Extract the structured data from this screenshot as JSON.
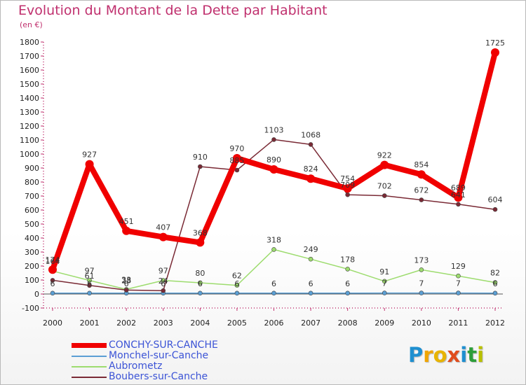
{
  "header": {
    "title": "Evolution du Montant de la Dette par Habitant",
    "subtitle": "(en €)"
  },
  "logo": {
    "text": "Proxiti",
    "colors": [
      "#1e8fd0",
      "#f0a500",
      "#e8b400",
      "#e04c1c",
      "#1e8fd0",
      "#2d9e3a",
      "#b8c000"
    ]
  },
  "chart_data": {
    "type": "line",
    "x": [
      "2000",
      "2001",
      "2002",
      "2003",
      "2004",
      "2005",
      "2006",
      "2007",
      "2008",
      "2009",
      "2010",
      "2011",
      "2012"
    ],
    "ylim": [
      -100,
      1800
    ],
    "yticks": [
      -100,
      0,
      100,
      200,
      300,
      400,
      500,
      600,
      700,
      800,
      900,
      1000,
      1100,
      1200,
      1300,
      1400,
      1500,
      1600,
      1700,
      1800
    ],
    "grid": false,
    "legend": "bottom-left",
    "series": [
      {
        "name": "Monchel-sur-Canche",
        "color": "#5b9fd4",
        "values": [
          6,
          6,
          6,
          6,
          6,
          6,
          6,
          6,
          6,
          7,
          7,
          7,
          6
        ],
        "labels": [
          "6",
          "6",
          "6",
          "6",
          "6",
          "6",
          "6",
          "6",
          "6",
          "7",
          "7",
          "7",
          "6"
        ]
      },
      {
        "name": "Aubrometz",
        "color": "#9ddc6e",
        "values": [
          164,
          97,
          33,
          97,
          80,
          62,
          318,
          249,
          178,
          91,
          173,
          129,
          82
        ],
        "labels": [
          "164",
          "97",
          "33",
          "97",
          "80",
          "62",
          "318",
          "249",
          "178",
          "91",
          "173",
          "129",
          "82"
        ]
      },
      {
        "name": "Boubers-sur-Canche",
        "color": "#7a2a35",
        "values": [
          98,
          61,
          28,
          24,
          910,
          885,
          1103,
          1068,
          709,
          702,
          672,
          641,
          604
        ],
        "labels": [
          "",
          "61",
          "28",
          "24",
          "910",
          "885",
          "1103",
          "1068",
          "709",
          "702",
          "672",
          "641",
          "604"
        ]
      },
      {
        "name": "CONCHY-SUR-CANCHE",
        "color": "#f00000",
        "values": [
          174,
          927,
          451,
          407,
          368,
          970,
          890,
          824,
          754,
          922,
          854,
          689,
          1725
        ],
        "labels": [
          "174",
          "927",
          "451",
          "407",
          "368",
          "970",
          "890",
          "824",
          "754",
          "922",
          "854",
          "689",
          "1725"
        ]
      }
    ]
  },
  "legend": {
    "items": [
      {
        "label": "CONCHY-SUR-CANCHE",
        "color": "#f00000",
        "thick": true
      },
      {
        "label": "Monchel-sur-Canche",
        "color": "#5b9fd4",
        "thick": false
      },
      {
        "label": "Aubrometz",
        "color": "#9ddc6e",
        "thick": false
      },
      {
        "label": "Boubers-sur-Canche",
        "color": "#7a2a35",
        "thick": false
      }
    ]
  }
}
